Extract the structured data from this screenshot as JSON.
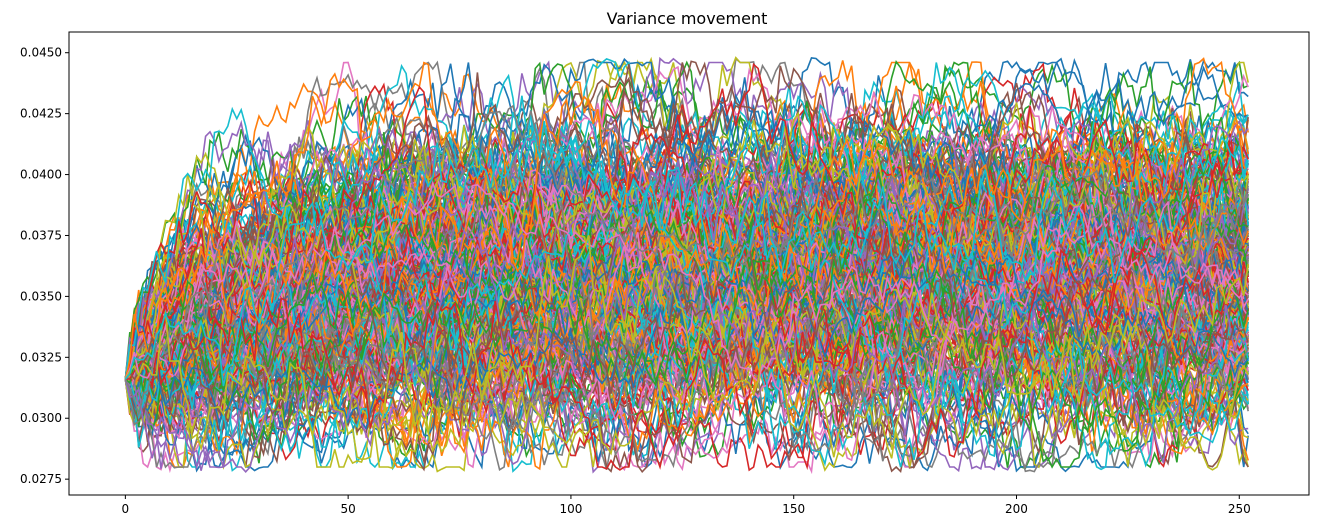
{
  "chart_data": {
    "type": "line",
    "title": "Variance movement",
    "xlabel": "",
    "ylabel": "",
    "xlim": [
      -12.65,
      265.65
    ],
    "ylim": [
      0.02685,
      0.04585
    ],
    "xticks": [
      0,
      50,
      100,
      150,
      200,
      250
    ],
    "xtick_labels": [
      "0",
      "50",
      "100",
      "150",
      "200",
      "250"
    ],
    "yticks": [
      0.0275,
      0.03,
      0.0325,
      0.035,
      0.0375,
      0.04,
      0.0425,
      0.045
    ],
    "ytick_labels": [
      "0.0275",
      "0.0300",
      "0.0325",
      "0.0350",
      "0.0375",
      "0.0400",
      "0.0425",
      "0.0450"
    ],
    "grid": false,
    "legend": "none",
    "x_range": [
      0,
      252
    ],
    "initial_value": 0.0316,
    "long_run_mean": 0.0359,
    "band_upper_approx": 0.042,
    "band_lower_approx": 0.0305,
    "series_count_approx": 1000,
    "observed_extremes": {
      "max": 0.0448,
      "max_at_x": 176,
      "min": 0.0278,
      "min_at_x": 17
    },
    "palette": [
      "#1f77b4",
      "#ff7f0e",
      "#2ca02c",
      "#d62728",
      "#9467bd",
      "#8c564b",
      "#e377c2",
      "#7f7f7f",
      "#bcbd22",
      "#17becf"
    ]
  }
}
